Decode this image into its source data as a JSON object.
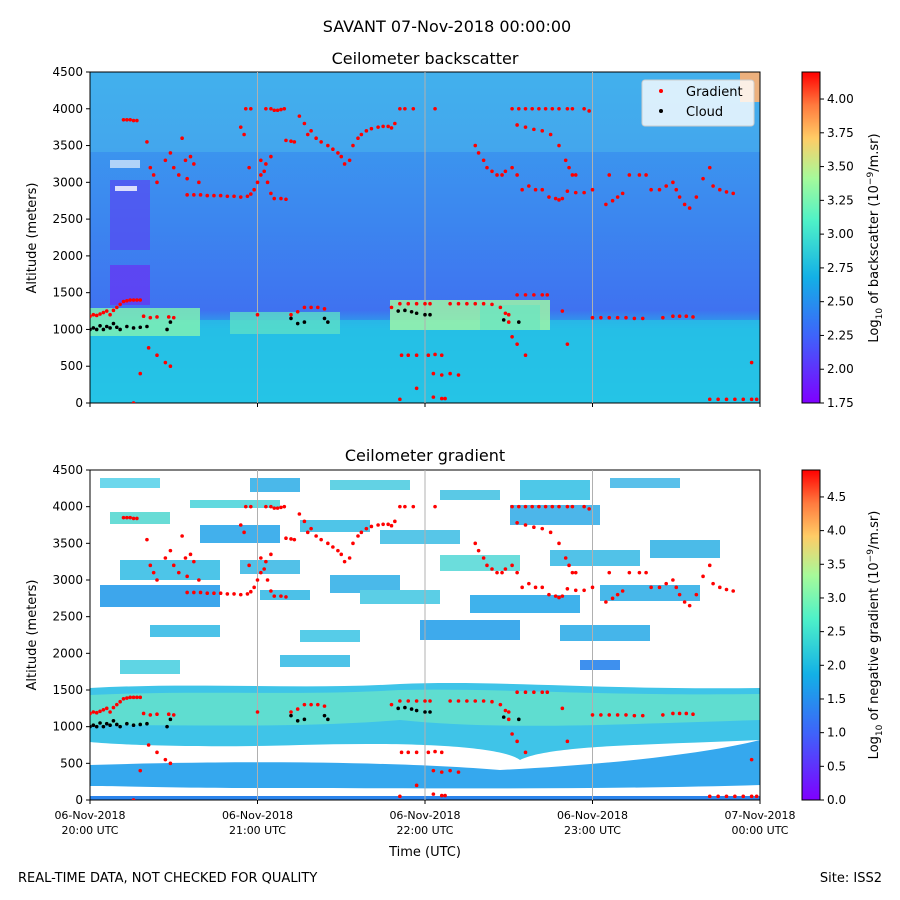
{
  "suptitle": "SAVANT 07-Nov-2018 00:00:00",
  "footer": {
    "left": "REAL-TIME DATA, NOT CHECKED FOR QUALITY",
    "right": "Site: ISS2"
  },
  "colors": {
    "gradient_marker": "#ff0000",
    "cloud_marker": "#000000",
    "vline": "#b0b0b0"
  },
  "chart_data": [
    {
      "type": "heatmap",
      "title": "Ceilometer backscatter",
      "ylabel": "Altitude (meters)",
      "ylim": [
        0,
        4500
      ],
      "yticks": [
        0,
        500,
        1000,
        1500,
        2000,
        2500,
        3000,
        3500,
        4000,
        4500
      ],
      "xlim_hours": [
        20,
        24
      ],
      "vlines_hours": [
        21,
        22,
        23
      ],
      "colorbar": {
        "label_prefix": "Log",
        "label_sub": "10",
        "label_mid": " of backscatter (10",
        "label_sup": "−9",
        "label_suffix": "/m.sr)",
        "range": [
          1.75,
          4.2
        ],
        "ticks": [
          "1.75",
          "2.00",
          "2.25",
          "2.50",
          "2.75",
          "3.00",
          "3.25",
          "3.50",
          "3.75",
          "4.00"
        ]
      },
      "legend": {
        "position": "top-right",
        "entries": [
          {
            "label": "Gradient",
            "color": "#ff0000"
          },
          {
            "label": "Cloud",
            "color": "#000000"
          }
        ]
      }
    },
    {
      "type": "heatmap",
      "title": "Ceilometer gradient",
      "ylabel": "Altitude (meters)",
      "xlabel": "Time (UTC)",
      "ylim": [
        0,
        4500
      ],
      "yticks": [
        0,
        500,
        1000,
        1500,
        2000,
        2500,
        3000,
        3500,
        4000,
        4500
      ],
      "xlim_hours": [
        20,
        24
      ],
      "vlines_hours": [
        21,
        22,
        23
      ],
      "xticks": [
        {
          "hour": 20,
          "date": "06-Nov-2018",
          "time": "20:00 UTC"
        },
        {
          "hour": 21,
          "date": "06-Nov-2018",
          "time": "21:00 UTC"
        },
        {
          "hour": 22,
          "date": "06-Nov-2018",
          "time": "22:00 UTC"
        },
        {
          "hour": 23,
          "date": "06-Nov-2018",
          "time": "23:00 UTC"
        },
        {
          "hour": 24,
          "date": "07-Nov-2018",
          "time": "00:00 UTC"
        }
      ],
      "colorbar": {
        "label_prefix": "Log",
        "label_sub": "10",
        "label_mid": " of negative gradient (10",
        "label_sup": "−9",
        "label_suffix": "/m.sr)",
        "range": [
          0,
          4.9
        ],
        "ticks": [
          "0.0",
          "0.5",
          "1.0",
          "1.5",
          "2.0",
          "2.5",
          "3.0",
          "3.5",
          "4.0",
          "4.5"
        ]
      }
    }
  ],
  "series": {
    "gradient_points": [
      [
        20.0,
        1180
      ],
      [
        20.02,
        1200
      ],
      [
        20.04,
        1190
      ],
      [
        20.06,
        1210
      ],
      [
        20.08,
        1230
      ],
      [
        20.1,
        1250
      ],
      [
        20.12,
        1200
      ],
      [
        20.14,
        1260
      ],
      [
        20.16,
        1300
      ],
      [
        20.18,
        1340
      ],
      [
        20.2,
        1380
      ],
      [
        20.22,
        1390
      ],
      [
        20.24,
        1400
      ],
      [
        20.26,
        1400
      ],
      [
        20.28,
        1400
      ],
      [
        20.3,
        1400
      ],
      [
        20.32,
        1180
      ],
      [
        20.36,
        1160
      ],
      [
        20.4,
        1170
      ],
      [
        20.47,
        1170
      ],
      [
        20.5,
        1160
      ],
      [
        20.2,
        3850
      ],
      [
        20.22,
        3850
      ],
      [
        20.24,
        3850
      ],
      [
        20.26,
        3840
      ],
      [
        20.28,
        3840
      ],
      [
        20.34,
        3550
      ],
      [
        20.36,
        3200
      ],
      [
        20.38,
        3100
      ],
      [
        20.4,
        3000
      ],
      [
        20.45,
        3300
      ],
      [
        20.48,
        3400
      ],
      [
        20.5,
        3200
      ],
      [
        20.53,
        3100
      ],
      [
        20.55,
        3600
      ],
      [
        20.57,
        3300
      ],
      [
        20.58,
        3050
      ],
      [
        20.6,
        3350
      ],
      [
        20.62,
        3250
      ],
      [
        20.65,
        3000
      ],
      [
        20.3,
        400
      ],
      [
        20.35,
        750
      ],
      [
        20.4,
        650
      ],
      [
        20.45,
        550
      ],
      [
        20.48,
        500
      ],
      [
        20.26,
        0
      ],
      [
        20.58,
        2830
      ],
      [
        20.62,
        2830
      ],
      [
        20.66,
        2830
      ],
      [
        20.7,
        2820
      ],
      [
        20.74,
        2820
      ],
      [
        20.78,
        2820
      ],
      [
        20.82,
        2810
      ],
      [
        20.86,
        2810
      ],
      [
        20.9,
        2800
      ],
      [
        20.94,
        2810
      ],
      [
        20.96,
        2840
      ],
      [
        20.98,
        2900
      ],
      [
        21.0,
        3000
      ],
      [
        21.02,
        3100
      ],
      [
        21.04,
        3150
      ],
      [
        21.06,
        3000
      ],
      [
        21.08,
        2850
      ],
      [
        21.1,
        2780
      ],
      [
        21.14,
        2780
      ],
      [
        21.17,
        2770
      ],
      [
        20.9,
        3750
      ],
      [
        20.92,
        3650
      ],
      [
        20.95,
        3200
      ],
      [
        21.02,
        3300
      ],
      [
        21.05,
        3250
      ],
      [
        21.08,
        3350
      ],
      [
        20.93,
        4000
      ],
      [
        20.96,
        4000
      ],
      [
        21.05,
        4000
      ],
      [
        21.08,
        4000
      ],
      [
        21.1,
        3980
      ],
      [
        21.12,
        3980
      ],
      [
        21.14,
        3990
      ],
      [
        21.16,
        4000
      ],
      [
        21.17,
        3570
      ],
      [
        21.2,
        3560
      ],
      [
        21.22,
        3550
      ],
      [
        21.25,
        3900
      ],
      [
        21.28,
        3800
      ],
      [
        21.3,
        3650
      ],
      [
        21.32,
        3700
      ],
      [
        21.35,
        3600
      ],
      [
        21.38,
        3550
      ],
      [
        21.42,
        3500
      ],
      [
        21.45,
        3450
      ],
      [
        21.48,
        3400
      ],
      [
        21.5,
        3350
      ],
      [
        21.52,
        3250
      ],
      [
        21.55,
        3300
      ],
      [
        21.57,
        3500
      ],
      [
        21.6,
        3600
      ],
      [
        21.62,
        3650
      ],
      [
        21.65,
        3700
      ],
      [
        21.68,
        3730
      ],
      [
        21.72,
        3750
      ],
      [
        21.75,
        3760
      ],
      [
        21.78,
        3760
      ],
      [
        21.8,
        3740
      ],
      [
        21.82,
        3800
      ],
      [
        21.0,
        1200
      ],
      [
        21.2,
        1200
      ],
      [
        21.24,
        1240
      ],
      [
        21.28,
        1300
      ],
      [
        21.32,
        1300
      ],
      [
        21.36,
        1300
      ],
      [
        21.4,
        1280
      ],
      [
        21.8,
        1300
      ],
      [
        21.85,
        1350
      ],
      [
        21.9,
        1350
      ],
      [
        21.95,
        1350
      ],
      [
        22.0,
        1350
      ],
      [
        22.03,
        1350
      ],
      [
        21.85,
        4000
      ],
      [
        21.88,
        4000
      ],
      [
        21.93,
        4000
      ],
      [
        22.06,
        4000
      ],
      [
        21.86,
        650
      ],
      [
        21.9,
        650
      ],
      [
        21.95,
        650
      ],
      [
        22.02,
        650
      ],
      [
        22.06,
        660
      ],
      [
        22.1,
        650
      ],
      [
        22.05,
        400
      ],
      [
        22.1,
        380
      ],
      [
        22.15,
        400
      ],
      [
        22.2,
        380
      ],
      [
        21.95,
        200
      ],
      [
        22.05,
        80
      ],
      [
        22.1,
        60
      ],
      [
        22.12,
        60
      ],
      [
        21.85,
        50
      ],
      [
        22.15,
        1350
      ],
      [
        22.2,
        1350
      ],
      [
        22.25,
        1350
      ],
      [
        22.3,
        1350
      ],
      [
        22.35,
        1350
      ],
      [
        22.4,
        1340
      ],
      [
        22.45,
        1300
      ],
      [
        22.48,
        1220
      ],
      [
        22.5,
        1200
      ],
      [
        22.3,
        3500
      ],
      [
        22.32,
        3400
      ],
      [
        22.35,
        3300
      ],
      [
        22.37,
        3200
      ],
      [
        22.4,
        3150
      ],
      [
        22.43,
        3100
      ],
      [
        22.46,
        3100
      ],
      [
        22.48,
        3150
      ],
      [
        22.52,
        3200
      ],
      [
        22.55,
        3100
      ],
      [
        22.58,
        2900
      ],
      [
        22.62,
        2950
      ],
      [
        22.66,
        2900
      ],
      [
        22.7,
        2900
      ],
      [
        22.74,
        2800
      ],
      [
        22.78,
        2780
      ],
      [
        22.8,
        2760
      ],
      [
        22.82,
        2780
      ],
      [
        22.85,
        2880
      ],
      [
        22.9,
        2860
      ],
      [
        22.95,
        2860
      ],
      [
        23.0,
        2900
      ],
      [
        22.52,
        4000
      ],
      [
        22.56,
        4000
      ],
      [
        22.6,
        4000
      ],
      [
        22.64,
        4000
      ],
      [
        22.68,
        4000
      ],
      [
        22.72,
        4000
      ],
      [
        22.76,
        4000
      ],
      [
        22.8,
        4000
      ],
      [
        22.85,
        4000
      ],
      [
        22.88,
        4000
      ],
      [
        22.95,
        4000
      ],
      [
        22.98,
        3970
      ],
      [
        22.55,
        3780
      ],
      [
        22.6,
        3750
      ],
      [
        22.65,
        3720
      ],
      [
        22.7,
        3700
      ],
      [
        22.75,
        3650
      ],
      [
        22.8,
        3500
      ],
      [
        22.84,
        3300
      ],
      [
        22.86,
        3200
      ],
      [
        22.88,
        3100
      ],
      [
        22.9,
        3100
      ],
      [
        22.55,
        1470
      ],
      [
        22.6,
        1470
      ],
      [
        22.65,
        1470
      ],
      [
        22.7,
        1470
      ],
      [
        22.73,
        1470
      ],
      [
        22.5,
        1100
      ],
      [
        22.52,
        900
      ],
      [
        22.55,
        800
      ],
      [
        22.6,
        650
      ],
      [
        22.82,
        1250
      ],
      [
        22.85,
        800
      ],
      [
        23.0,
        1160
      ],
      [
        23.05,
        1160
      ],
      [
        23.1,
        1160
      ],
      [
        23.15,
        1160
      ],
      [
        23.2,
        1160
      ],
      [
        23.25,
        1150
      ],
      [
        23.3,
        1150
      ],
      [
        23.42,
        1160
      ],
      [
        23.48,
        1180
      ],
      [
        23.52,
        1180
      ],
      [
        23.56,
        1180
      ],
      [
        23.6,
        1170
      ],
      [
        23.08,
        2700
      ],
      [
        23.12,
        2750
      ],
      [
        23.15,
        2800
      ],
      [
        23.18,
        2850
      ],
      [
        23.22,
        3100
      ],
      [
        23.28,
        3100
      ],
      [
        23.32,
        3100
      ],
      [
        23.35,
        2900
      ],
      [
        23.4,
        2900
      ],
      [
        23.44,
        2950
      ],
      [
        23.48,
        3000
      ],
      [
        23.5,
        2900
      ],
      [
        23.52,
        2800
      ],
      [
        23.55,
        2700
      ],
      [
        23.58,
        2650
      ],
      [
        23.62,
        2800
      ],
      [
        23.66,
        3050
      ],
      [
        23.7,
        3200
      ],
      [
        23.72,
        2950
      ],
      [
        23.76,
        2900
      ],
      [
        23.8,
        2870
      ],
      [
        23.84,
        2850
      ],
      [
        23.1,
        3100
      ],
      [
        23.7,
        50
      ],
      [
        23.75,
        50
      ],
      [
        23.8,
        50
      ],
      [
        23.85,
        50
      ],
      [
        23.9,
        50
      ],
      [
        23.95,
        50
      ],
      [
        23.98,
        50
      ],
      [
        23.95,
        550
      ]
    ],
    "cloud_points": [
      [
        20.0,
        1000
      ],
      [
        20.02,
        1020
      ],
      [
        20.04,
        1000
      ],
      [
        20.06,
        1050
      ],
      [
        20.08,
        1000
      ],
      [
        20.1,
        1040
      ],
      [
        20.12,
        1020
      ],
      [
        20.14,
        1080
      ],
      [
        20.16,
        1030
      ],
      [
        20.18,
        1000
      ],
      [
        20.22,
        1040
      ],
      [
        20.26,
        1020
      ],
      [
        20.3,
        1030
      ],
      [
        20.34,
        1040
      ],
      [
        20.46,
        1000
      ],
      [
        20.48,
        1100
      ],
      [
        21.2,
        1150
      ],
      [
        21.24,
        1080
      ],
      [
        21.28,
        1100
      ],
      [
        21.4,
        1150
      ],
      [
        21.42,
        1100
      ],
      [
        21.84,
        1250
      ],
      [
        21.88,
        1260
      ],
      [
        21.92,
        1240
      ],
      [
        21.95,
        1220
      ],
      [
        22.0,
        1200
      ],
      [
        22.03,
        1200
      ],
      [
        22.47,
        1130
      ],
      [
        22.56,
        1100
      ]
    ]
  }
}
